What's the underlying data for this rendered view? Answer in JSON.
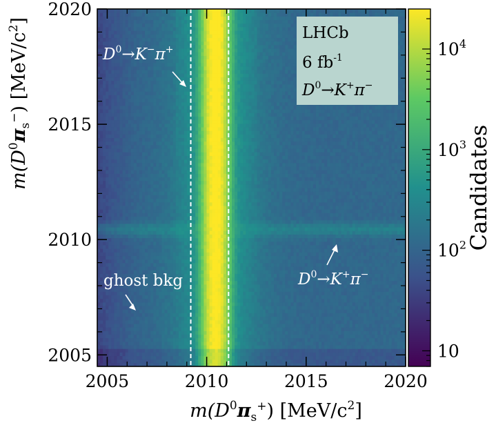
{
  "chart_data": {
    "type": "heatmap",
    "title": "",
    "xlabel": {
      "main": "m(D",
      "sup": "0",
      "pi": "π",
      "sub": "s",
      "sub_sup": "+",
      "units": ")  [MeV/c",
      "units_sup": "2",
      "units_end": "]"
    },
    "ylabel": {
      "main": "m(D",
      "sup": "0",
      "pi": "π",
      "sub": "s",
      "sub_sup": "−",
      "units": ")  [MeV/c",
      "units_sup": "2",
      "units_end": "]"
    },
    "xlim": [
      2004.5,
      2020
    ],
    "ylim": [
      2004.5,
      2020
    ],
    "x_ticks": [
      2005,
      2010,
      2015,
      2020
    ],
    "x_tick_labels": [
      "2005",
      "2010",
      "2015",
      "2020"
    ],
    "y_ticks": [
      2005,
      2010,
      2015,
      2020
    ],
    "y_tick_labels": [
      "2005",
      "2010",
      "2015",
      "2020"
    ],
    "signal_window_x": [
      2009.2,
      2011.1
    ],
    "peak": {
      "x": 2010.45,
      "width": 0.32,
      "max_candidates": 25000
    },
    "background_level": 100,
    "horizontal_band": {
      "y": 2010.45,
      "level": 250
    },
    "colorbar": {
      "label": "Candidates",
      "scale": "log",
      "range": [
        7,
        25000
      ],
      "ticks": [
        10,
        100,
        1000,
        10000
      ],
      "tick_labels": [
        {
          "base": "10",
          "exp": ""
        },
        {
          "base": "10",
          "exp": "2"
        },
        {
          "base": "10",
          "exp": "3"
        },
        {
          "base": "10",
          "exp": "4"
        }
      ],
      "colors": [
        "#440154",
        "#3b528b",
        "#21908d",
        "#5dc963",
        "#fde725"
      ]
    },
    "legend": {
      "position": "top-right",
      "lines": [
        "LHCb",
        "6 fb",
        "-1"
      ],
      "decay": {
        "d": "D",
        "d_sup": "0",
        "arrow": "→",
        "k": "K",
        "k_sup": "+",
        "pi": "π",
        "pi_sup": "−"
      },
      "background": "#b9d5cf"
    },
    "annotations": [
      {
        "id": "rs-label",
        "d": "D",
        "d_sup": "0",
        "arrow": "→",
        "k": "K",
        "k_sup": "−",
        "pi": "π",
        "pi_sup": "+"
      },
      {
        "id": "ws-label",
        "d": "D",
        "d_sup": "0",
        "arrow": "→",
        "k": "K",
        "k_sup": "+",
        "pi": "π",
        "pi_sup": "−"
      },
      {
        "id": "ghost-label",
        "text": "ghost bkg"
      }
    ]
  }
}
